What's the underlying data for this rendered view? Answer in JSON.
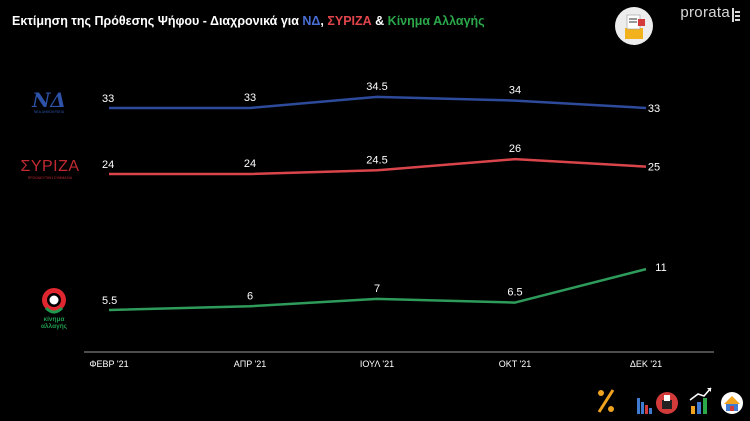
{
  "header": {
    "title_prefix": "Εκτίμηση της Πρόθεσης Ψήφου - Διαχρονικά για ",
    "title_nd": "ΝΔ",
    "title_sep1": ", ",
    "title_syriza": "ΣΥΡΙΖΑ",
    "title_sep2": " & ",
    "title_kinal": "Κίνημα Αλλαγής",
    "brand": "prorata"
  },
  "logos": {
    "nd": {
      "letters": "ΝΔ",
      "sub": "ΝΕΑ ΔΗΜΟΚΡΑΤΙΑ"
    },
    "syriza": {
      "letters": "ΣΥΡΙΖΑ",
      "sub": "ΠΡΟΟΔΕΥΤΙΚΗ ΣΥΜΜΑΧΙΑ"
    },
    "kinal": {
      "line1": "κίνημα",
      "line2": "αλλαγής"
    }
  },
  "colors": {
    "nd": "#2d4a9b",
    "syriza": "#d9454b",
    "kinal": "#2e9b5a",
    "title_nd": "#4a6fd4",
    "title_syriza": "#e2454b",
    "title_kinal": "#2ba84a",
    "axis": "#9a9a9a"
  },
  "chart_data": {
    "type": "line",
    "title": "Εκτίμηση της Πρόθεσης Ψήφου - Διαχρονικά για ΝΔ, ΣΥΡΙΖΑ & Κίνημα Αλλαγής",
    "categories": [
      "ΦΕΒΡ '21",
      "ΑΠΡ '21",
      "ΙΟΥΛ '21",
      "ΟΚΤ '21",
      "ΔΕΚ '21"
    ],
    "series": [
      {
        "name": "ΝΔ",
        "key": "nd",
        "values": [
          33,
          33,
          34.5,
          34,
          33
        ]
      },
      {
        "name": "ΣΥΡΙΖΑ",
        "key": "syriza",
        "values": [
          24,
          24,
          24.5,
          26,
          25
        ]
      },
      {
        "name": "Κίνημα Αλλαγής",
        "key": "kinal",
        "values": [
          5.5,
          6,
          7,
          6.5,
          11
        ]
      }
    ],
    "xlabel": "",
    "ylabel": "",
    "grid": false,
    "legend": "logos-left"
  },
  "bottom_icons": [
    "percent-icon",
    "bar-chart-icon",
    "ballot-box-icon",
    "trend-up-icon",
    "house-icon"
  ]
}
